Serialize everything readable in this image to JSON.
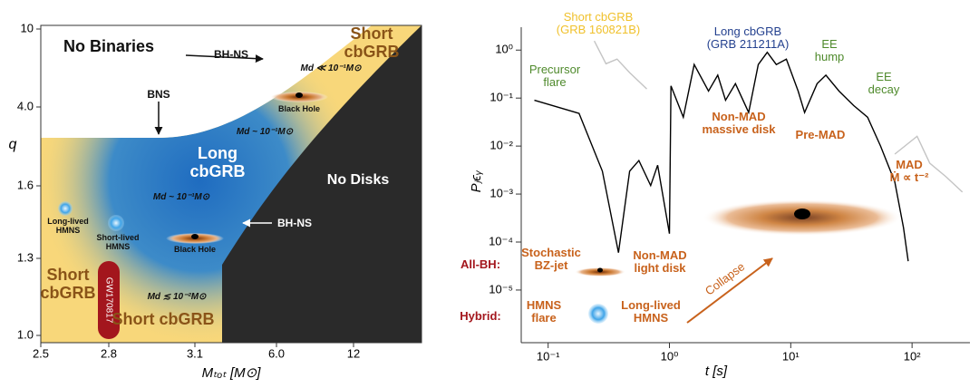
{
  "chart_data": [
    {
      "type": "region",
      "xlabel": "Mₜₒₜ [M⊙]",
      "ylabel": "q",
      "xticks": [
        2.5,
        2.8,
        3.1,
        {
          "value": 6.0,
          "label": "6.0"
        },
        12
      ],
      "yticks": [
        {
          "value": 1.0,
          "label": "1.0"
        },
        1.3,
        1.6,
        {
          "value": 4.0,
          "label": "4.0"
        },
        10
      ],
      "annotations": [
        {
          "text": "No Binaries",
          "color": "#111111"
        },
        {
          "text": "Short\ncbGRB",
          "color": "#8a5418"
        },
        {
          "text": "BH-NS",
          "color": "#111111"
        },
        {
          "text": "BNS",
          "color": "#111111"
        },
        {
          "text": "Md ≪ 10⁻¹M⊙",
          "color": "#111111"
        },
        {
          "text": "Black Hole",
          "color": "#111111"
        },
        {
          "text": "Md ~ 10⁻¹M⊙",
          "color": "#111111"
        },
        {
          "text": "Long\ncbGRB",
          "color": "#ffffff"
        },
        {
          "text": "No Disks",
          "color": "#ffffff"
        },
        {
          "text": "Md ~ 10⁻¹M⊙",
          "color": "#111111"
        },
        {
          "text": "BH-NS",
          "color": "#ffffff"
        },
        {
          "text": "Long-lived\nHMNS",
          "color": "#111111"
        },
        {
          "text": "Short-lived\nHMNS",
          "color": "#111111"
        },
        {
          "text": "Black Hole",
          "color": "#111111"
        },
        {
          "text": "Short\ncbGRB",
          "color": "#8a5418"
        },
        {
          "text": "GW170817",
          "color": "#ffffff"
        },
        {
          "text": "Md ≲ 10⁻²M⊙",
          "color": "#111111"
        },
        {
          "text": "Short cbGRB",
          "color": "#8a5418"
        }
      ]
    },
    {
      "type": "line",
      "xlabel": "t [s]",
      "ylabel": "Pⱼϵᵧ",
      "xlog": true,
      "ylog": true,
      "xlim": [
        0.06,
        300
      ],
      "ylim": [
        8e-07,
        3
      ],
      "xticks": [
        {
          "value": 0.1,
          "label": "10⁻¹"
        },
        {
          "value": 1,
          "label": "10⁰"
        },
        {
          "value": 10,
          "label": "10¹"
        },
        {
          "value": 100,
          "label": "10²"
        }
      ],
      "yticks": [
        {
          "value": 1e-05,
          "label": "10⁻⁵"
        },
        {
          "value": 0.0001,
          "label": "10⁻⁴"
        },
        {
          "value": 0.001,
          "label": "10⁻³"
        },
        {
          "value": 0.01,
          "label": "10⁻²"
        },
        {
          "value": 0.1,
          "label": "10⁻¹"
        },
        {
          "value": 1,
          "label": "10⁰"
        }
      ],
      "series": [
        {
          "name": "Long cbGRB\n(GRB 211211A)",
          "color": "#000000",
          "label_color": "#24418f",
          "x": [
            0.077,
            0.18,
            0.28,
            0.38,
            0.47,
            0.56,
            0.7,
            0.8,
            1.0,
            1.03,
            1.3,
            1.6,
            2.1,
            2.5,
            2.9,
            3.5,
            4.5,
            5.4,
            6.4,
            7.6,
            9.2,
            11.5,
            13,
            16.5,
            19.5,
            25,
            33,
            43,
            55,
            72,
            85,
            93
          ],
          "values": [
            0.09,
            0.048,
            0.003,
            6e-05,
            0.003,
            0.005,
            0.0015,
            0.004,
            0.00015,
            0.18,
            0.04,
            0.5,
            0.14,
            0.3,
            0.09,
            0.2,
            0.05,
            0.5,
            0.9,
            0.5,
            0.65,
            0.14,
            0.05,
            0.2,
            0.3,
            0.14,
            0.07,
            0.04,
            0.01,
            0.0018,
            0.0002,
            4e-05
          ]
        },
        {
          "name": "Short cbGRB\n(GRB 160821B)",
          "color": "#c4c4c4",
          "label_color": "#f0c12c",
          "x": [
            0.24,
            0.3,
            0.37,
            0.47,
            0.65
          ],
          "values": [
            1.55,
            0.52,
            0.65,
            0.34,
            0.155
          ]
        },
        {
          "color": "#c4c4c4",
          "x": [
            72,
            110,
            140,
            190,
            260
          ],
          "values": [
            0.0068,
            0.016,
            0.0044,
            0.0023,
            0.0011
          ]
        }
      ],
      "annotations": [
        {
          "text": "Precursor\nflare",
          "color": "#4f8a2c"
        },
        {
          "text": "EE\nhump",
          "color": "#4f8a2c"
        },
        {
          "text": "EE\ndecay",
          "color": "#4f8a2c"
        },
        {
          "text": "Non-MAD\nmassive disk",
          "color": "#c8621c"
        },
        {
          "text": "Pre-MAD",
          "color": "#c8621c"
        },
        {
          "text": "MAD\nṀ ∝ t⁻²",
          "color": "#c8621c"
        },
        {
          "text": "Stochastic\nBZ-jet",
          "color": "#c8621c"
        },
        {
          "text": "Non-MAD\nlight disk",
          "color": "#c8621c"
        },
        {
          "text": "HMNS\nflare",
          "color": "#c8621c"
        },
        {
          "text": "Long-lived\nHMNS",
          "color": "#c8621c"
        },
        {
          "text": "Collapse",
          "color": "#c8621c"
        },
        {
          "text": "All-BH:",
          "color": "#a3161d"
        },
        {
          "text": "Hybrid:",
          "color": "#a3161d"
        }
      ]
    }
  ]
}
